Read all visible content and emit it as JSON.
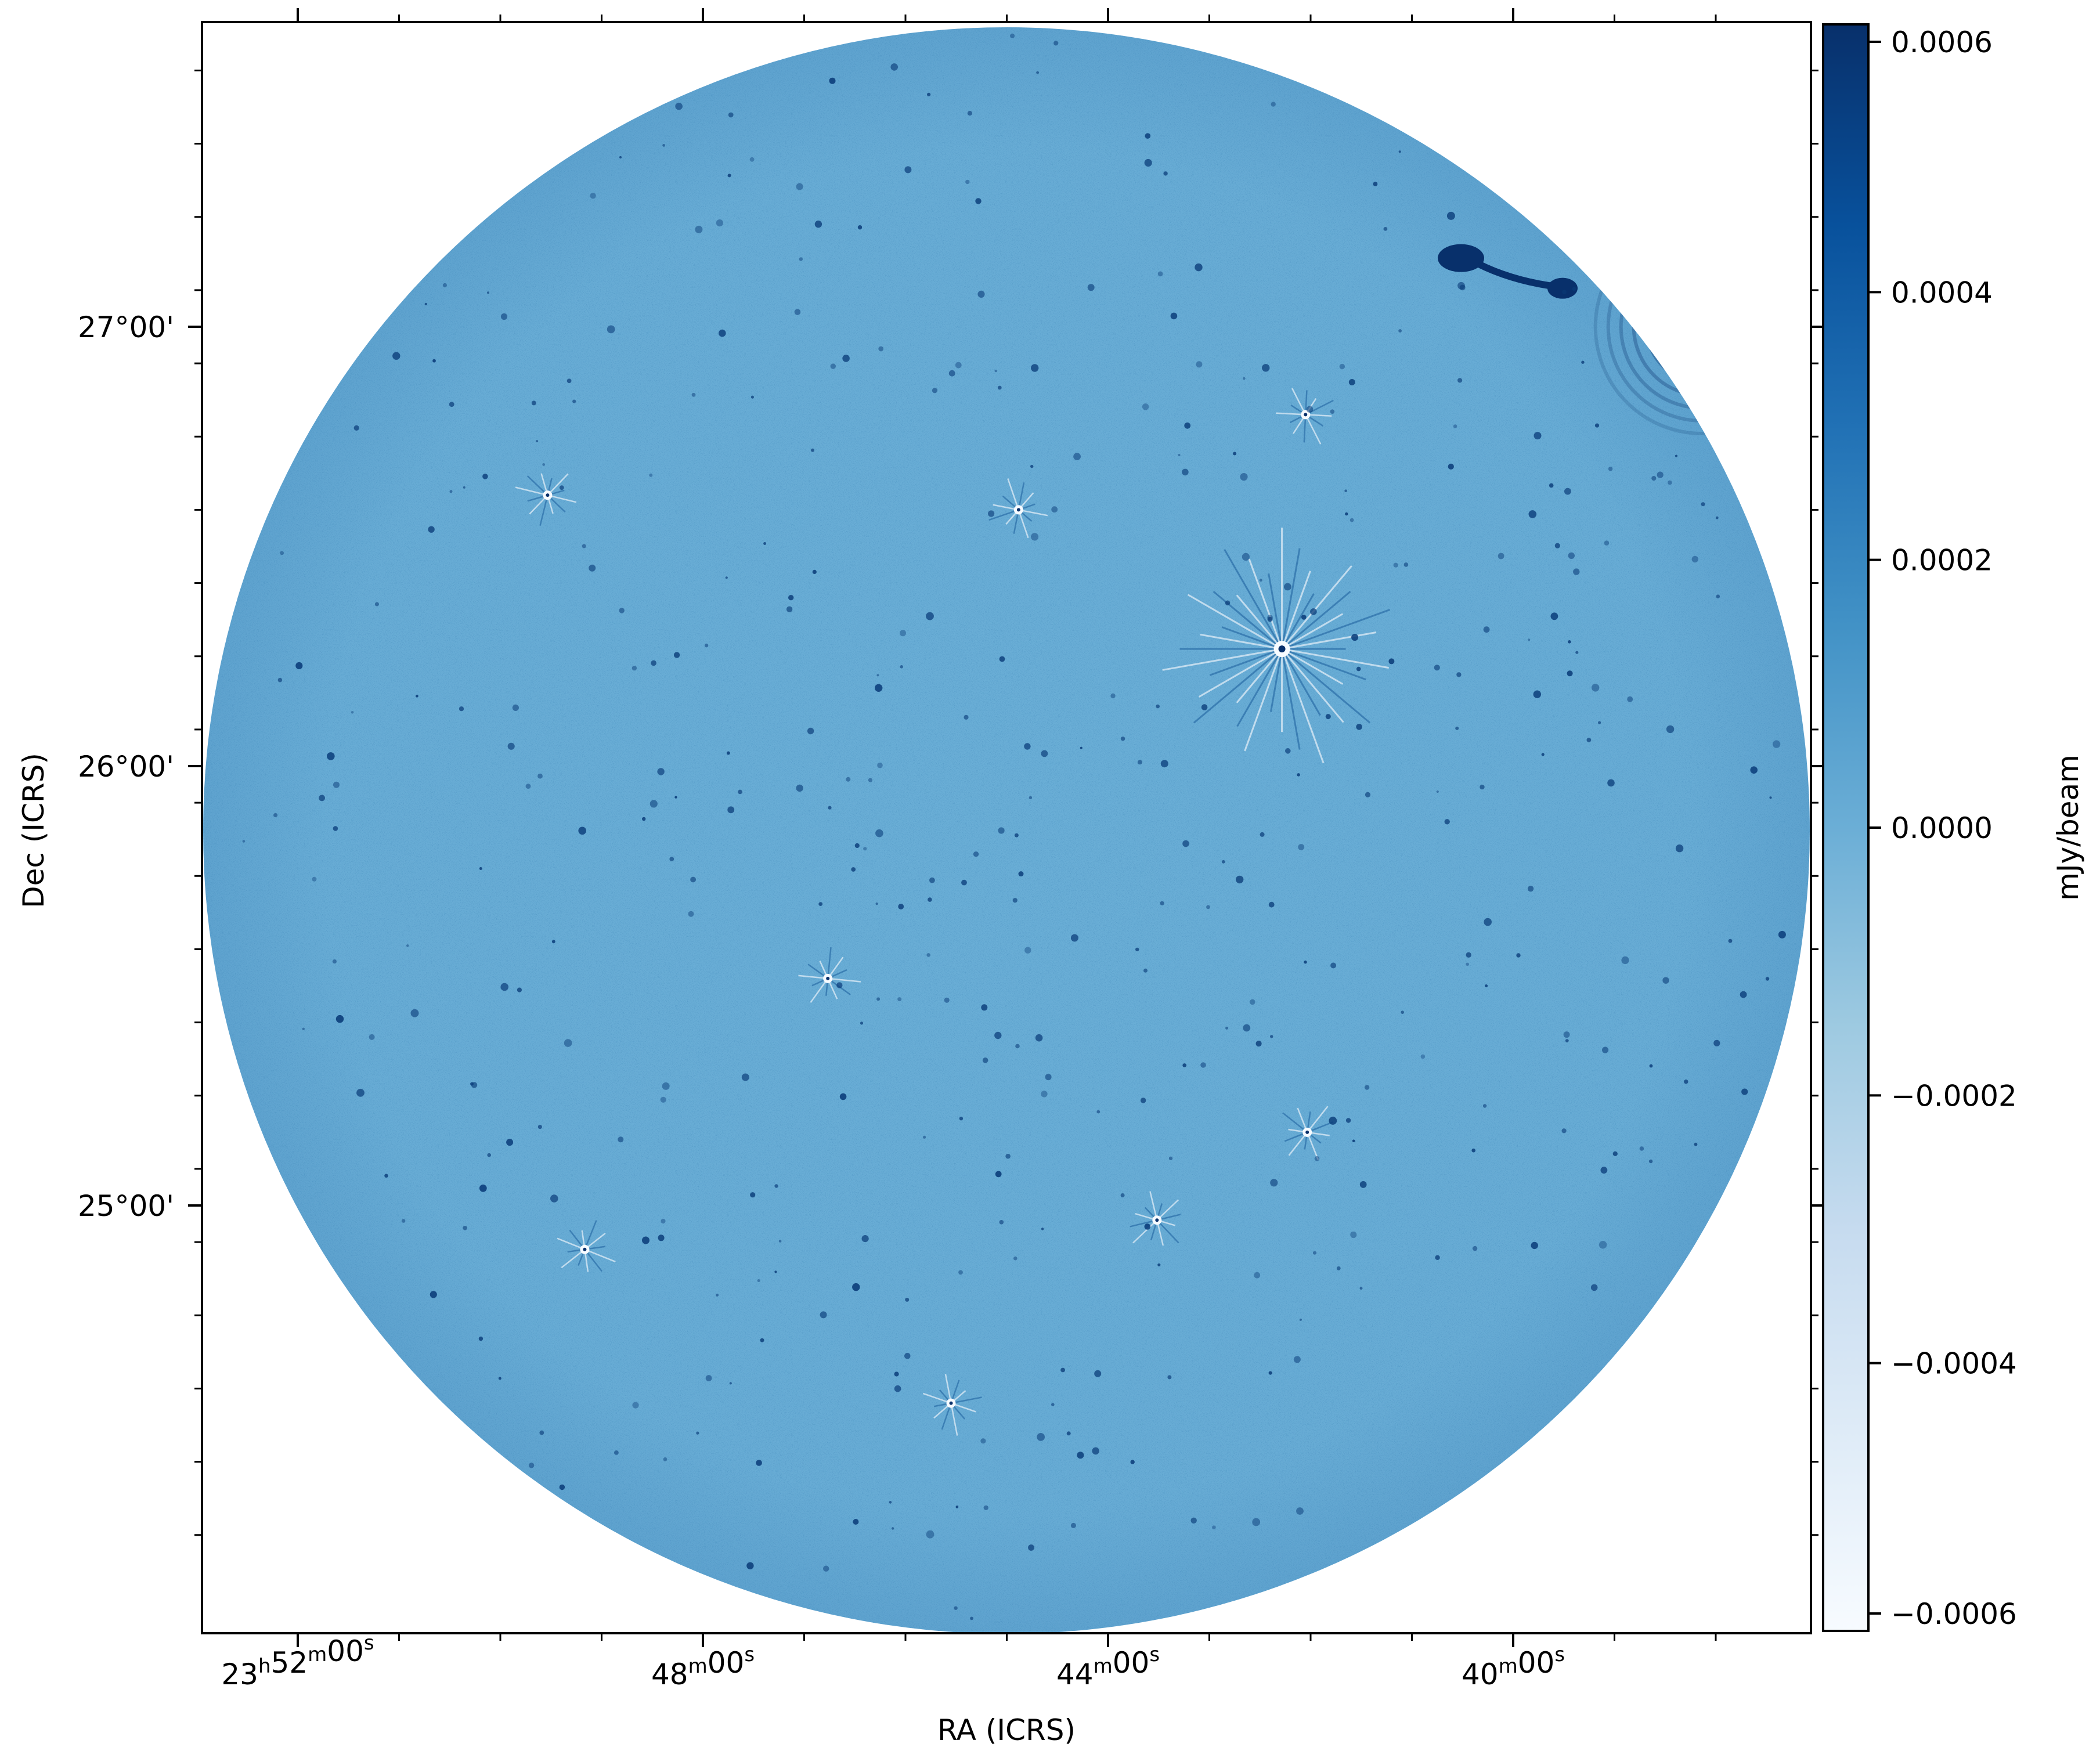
{
  "chart_data": {
    "type": "heatmap",
    "image_kind": "radio continuum map (circular primary beam field)",
    "colormap": "Blues",
    "axes": {
      "xlabel": "RA (ICRS)",
      "ylabel": "Dec (ICRS)",
      "x_ticks": [
        {
          "label": "23h52m00s",
          "hours": 23,
          "minutes": 52,
          "seconds": 0
        },
        {
          "label": "48m00s",
          "minutes": 48,
          "seconds": 0
        },
        {
          "label": "44m00s",
          "minutes": 44,
          "seconds": 0
        },
        {
          "label": "40m00s",
          "minutes": 40,
          "seconds": 0
        }
      ],
      "y_ticks": [
        {
          "label": "27°00'",
          "deg": 27
        },
        {
          "label": "26°00'",
          "deg": 26
        },
        {
          "label": "25°00'",
          "deg": 25
        }
      ]
    },
    "colorbar": {
      "label": "mJy/beam",
      "range": [
        -0.0006,
        0.0006
      ],
      "ticks": [
        "0.0006",
        "0.0004",
        "0.0002",
        "0.0000",
        "−0.0002",
        "−0.0004",
        "−0.0006"
      ],
      "tick_values": [
        0.0006,
        0.0004,
        0.0002,
        0.0,
        -0.0002,
        -0.0004,
        -0.0006
      ],
      "color_low": "#f7fbff",
      "color_mid": "#6aaed6",
      "color_high": "#08306b"
    },
    "background_level": 3e-05,
    "background_color": "#6aaed6",
    "bright_sources": [
      {
        "ra": "23h42m17s",
        "dec": "26°16'",
        "label": "brightest source, strong sidelobes"
      },
      {
        "ra": "23h38m08s",
        "dec": "27°00'",
        "label": "extended source with ring artefacts"
      },
      {
        "ra": "23h40m00s",
        "dec": "27°07'",
        "label": "extended double-lobed source"
      },
      {
        "ra": "23h49m10s",
        "dec": "24°54'",
        "label": "point source"
      },
      {
        "ra": "23h45m33s",
        "dec": "24°33'",
        "label": "point source"
      },
      {
        "ra": "23h43m31s",
        "dec": "24°58'",
        "label": "point source"
      },
      {
        "ra": "23h49m32s",
        "dec": "26°37'",
        "label": "point source"
      },
      {
        "ra": "23h44m53s",
        "dec": "26°35'",
        "label": "point source"
      },
      {
        "ra": "23h42m02s",
        "dec": "25°10'",
        "label": "point source"
      },
      {
        "ra": "23h46m46s",
        "dec": "25°31'",
        "label": "point source"
      },
      {
        "ra": "23h42m03s",
        "dec": "26°48'",
        "label": "point source"
      }
    ]
  }
}
